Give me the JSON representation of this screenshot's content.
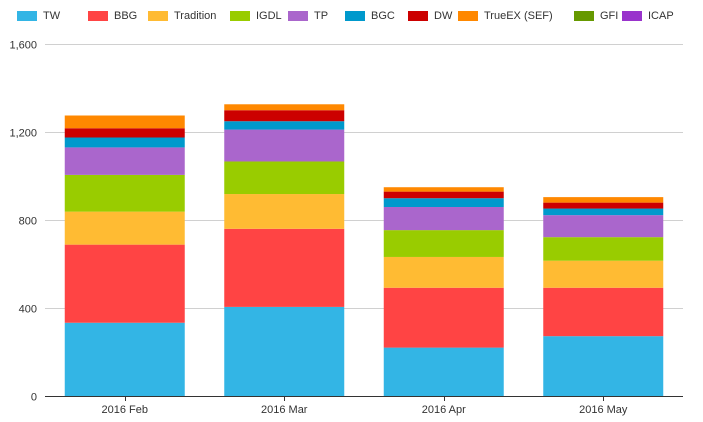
{
  "chart_data": {
    "type": "bar",
    "stacked": true,
    "title": "",
    "xlabel": "",
    "ylabel": "",
    "categories": [
      "2016 Feb",
      "2016 Mar",
      "2016 Apr",
      "2016 May"
    ],
    "ylim": [
      0,
      1600
    ],
    "yticks": [
      0,
      400,
      800,
      1200,
      1600
    ],
    "ytick_labels": [
      "0",
      "400",
      "800",
      "1,200",
      "1,600"
    ],
    "grid": true,
    "legend_position": "top",
    "series": [
      {
        "name": "TW",
        "color": "#33b5e5",
        "values": [
          333,
          405,
          220,
          272
        ]
      },
      {
        "name": "BBG",
        "color": "#ff4444",
        "values": [
          355,
          355,
          272,
          220
        ]
      },
      {
        "name": "Tradition",
        "color": "#ffbb33",
        "values": [
          150,
          158,
          140,
          123
        ]
      },
      {
        "name": "IGDL",
        "color": "#99cc00",
        "values": [
          167,
          148,
          122,
          107
        ]
      },
      {
        "name": "TP",
        "color": "#aa66cc",
        "values": [
          125,
          145,
          105,
          100
        ]
      },
      {
        "name": "BGC",
        "color": "#0099cc",
        "values": [
          45,
          38,
          40,
          30
        ]
      },
      {
        "name": "DW",
        "color": "#cc0000",
        "values": [
          42,
          50,
          30,
          27
        ]
      },
      {
        "name": "TrueEX (SEF)",
        "color": "#ff8800",
        "values": [
          58,
          27,
          20,
          25
        ]
      },
      {
        "name": "GFI",
        "color": "#669900",
        "values": [
          0,
          0,
          0,
          0
        ]
      },
      {
        "name": "ICAP",
        "color": "#9933cc",
        "values": [
          0,
          0,
          0,
          0
        ]
      }
    ]
  }
}
